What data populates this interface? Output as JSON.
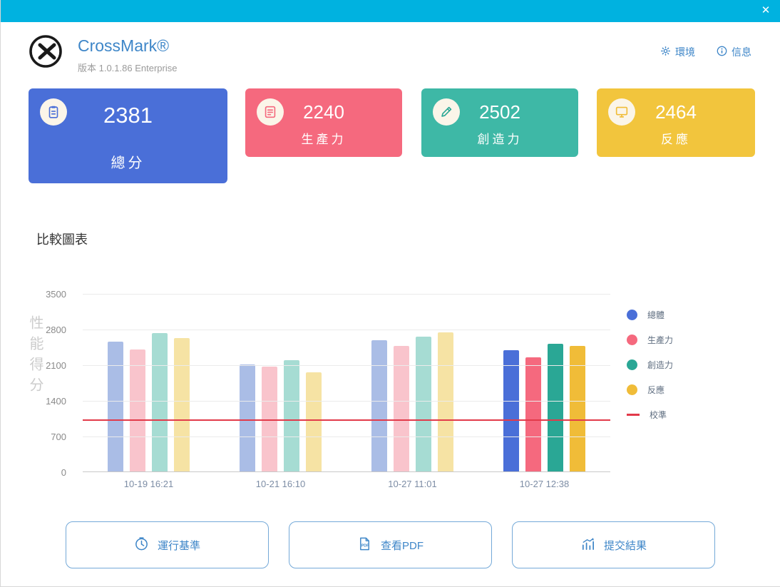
{
  "window": {
    "close_label": "✕"
  },
  "header": {
    "title": "CrossMark®",
    "subtitle": "版本 1.0.1.86 Enterprise",
    "nav": [
      {
        "label": "環境"
      },
      {
        "label": "信息"
      }
    ]
  },
  "cards": [
    {
      "score": "2381",
      "label": "總分",
      "color": "#4a6fd8"
    },
    {
      "score": "2240",
      "label": "生產力",
      "color": "#f5697e"
    },
    {
      "score": "2502",
      "label": "創造力",
      "color": "#3eb8a6"
    },
    {
      "score": "2464",
      "label": "反應",
      "color": "#f2c53d"
    }
  ],
  "section_title": "比較圖表",
  "chart_data": {
    "type": "bar",
    "title": "比較圖表",
    "ylabel": "性能得分",
    "ylim": [
      0,
      3500
    ],
    "yticks": [
      0,
      700,
      1400,
      2100,
      2800,
      3500
    ],
    "grid": true,
    "legend_position": "right",
    "categories": [
      "10-19 16:21",
      "10-21 16:10",
      "10-27 11:01",
      "10-27 12:38"
    ],
    "series": [
      {
        "name": "總體",
        "values": [
          2550,
          2100,
          2570,
          2381
        ],
        "color": "#4a6fd8",
        "muted": "#aabde6"
      },
      {
        "name": "生產力",
        "values": [
          2400,
          2060,
          2460,
          2240
        ],
        "color": "#f5697e",
        "muted": "#f9c4cc"
      },
      {
        "name": "創造力",
        "values": [
          2720,
          2190,
          2650,
          2502
        ],
        "color": "#2aa795",
        "muted": "#a6dcd3"
      },
      {
        "name": "反應",
        "values": [
          2620,
          1950,
          2730,
          2464
        ],
        "color": "#f0bc38",
        "muted": "#f6e3a4"
      }
    ],
    "highlight_group": 3,
    "calibration": {
      "name": "校準",
      "value": 1000,
      "color": "#e23a4a"
    }
  },
  "actions": [
    {
      "label": "運行基準"
    },
    {
      "label": "查看PDF"
    },
    {
      "label": "提交結果"
    }
  ]
}
